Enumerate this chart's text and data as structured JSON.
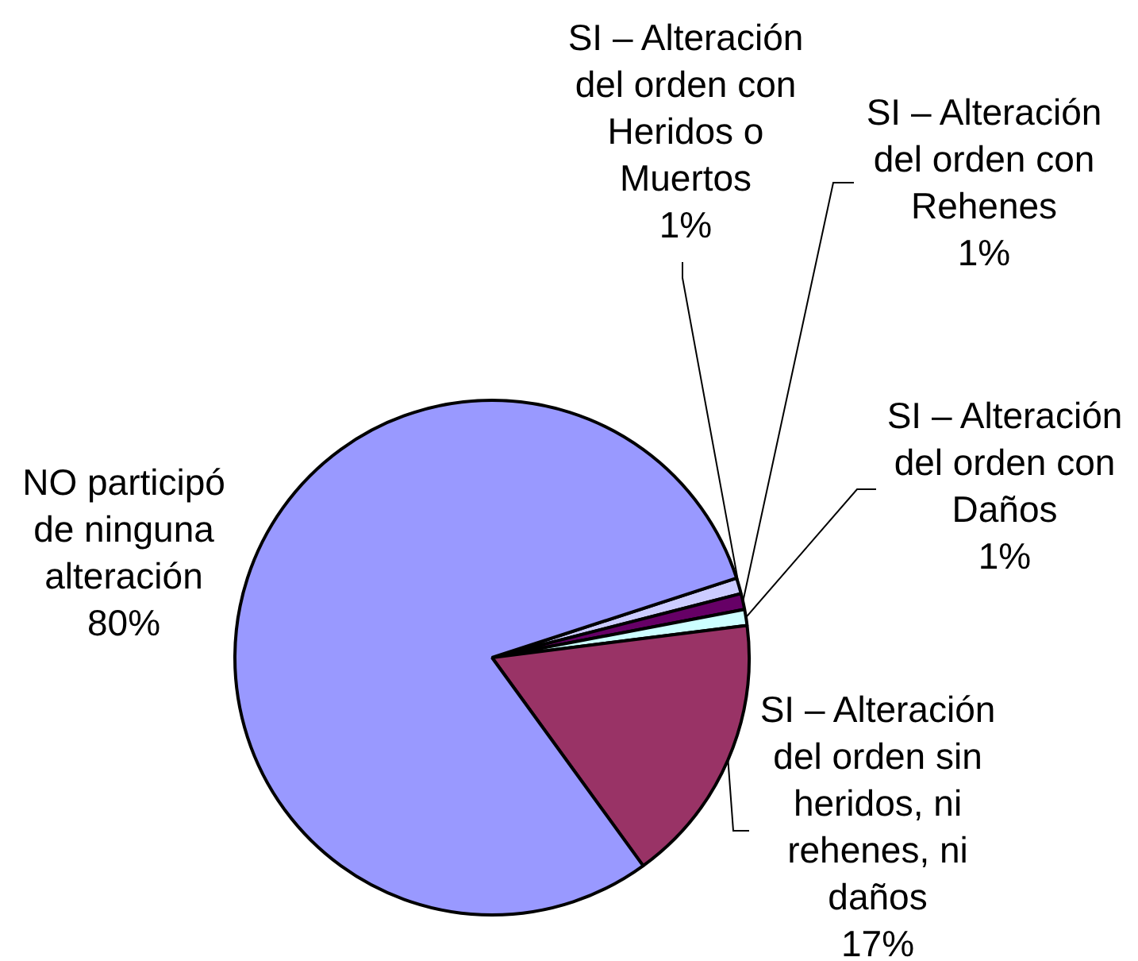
{
  "chart_data": {
    "type": "pie",
    "categories": [
      "SI – Alteración del orden con Heridos o Muertos",
      "SI – Alteración del orden con Rehenes",
      "SI – Alteración del orden con Daños",
      "SI – Alteración del orden sin heridos, ni rehenes, ni daños",
      "NO participó de ninguna alteración"
    ],
    "values": [
      1,
      1,
      1,
      17,
      80
    ],
    "value_labels": [
      "1%",
      "1%",
      "1%",
      "17%",
      "80%"
    ],
    "colors": [
      "#ccccff",
      "#660066",
      "#ccffff",
      "#993366",
      "#9999ff"
    ],
    "legend": false
  }
}
